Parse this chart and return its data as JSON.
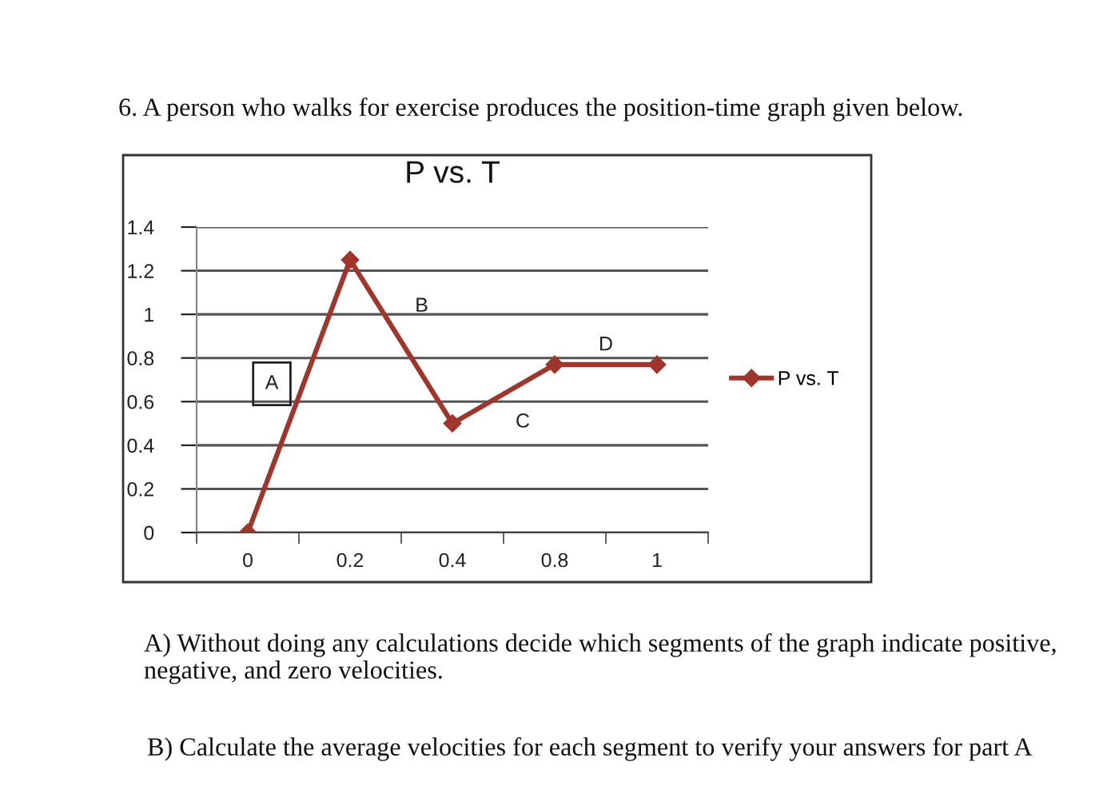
{
  "chart_data": {
    "type": "line",
    "title": "P vs. T",
    "categories": [
      "0",
      "0.2",
      "0.4",
      "0.8",
      "1"
    ],
    "series": [
      {
        "name": "P vs. T",
        "color": "#a0352b",
        "values": [
          0,
          1.25,
          0.5,
          0.77,
          0.77
        ]
      }
    ],
    "ylim": [
      0,
      1.4
    ],
    "yticks": [
      0,
      0.2,
      0.4,
      0.6,
      0.8,
      1,
      1.2,
      1.4
    ],
    "grid": "y",
    "legend": "right",
    "marker": "diamond",
    "line_style": "solid",
    "annotations": [
      "6. A person who walks for exercise produces the position-time graph given below.",
      "A",
      "B",
      "C",
      "D",
      "A) Without doing any calculations decide which segments of the graph indicate positive, negative, and zero velocities.",
      "B) Calculate the average velocities for each segment to verify your answers for part A"
    ]
  }
}
